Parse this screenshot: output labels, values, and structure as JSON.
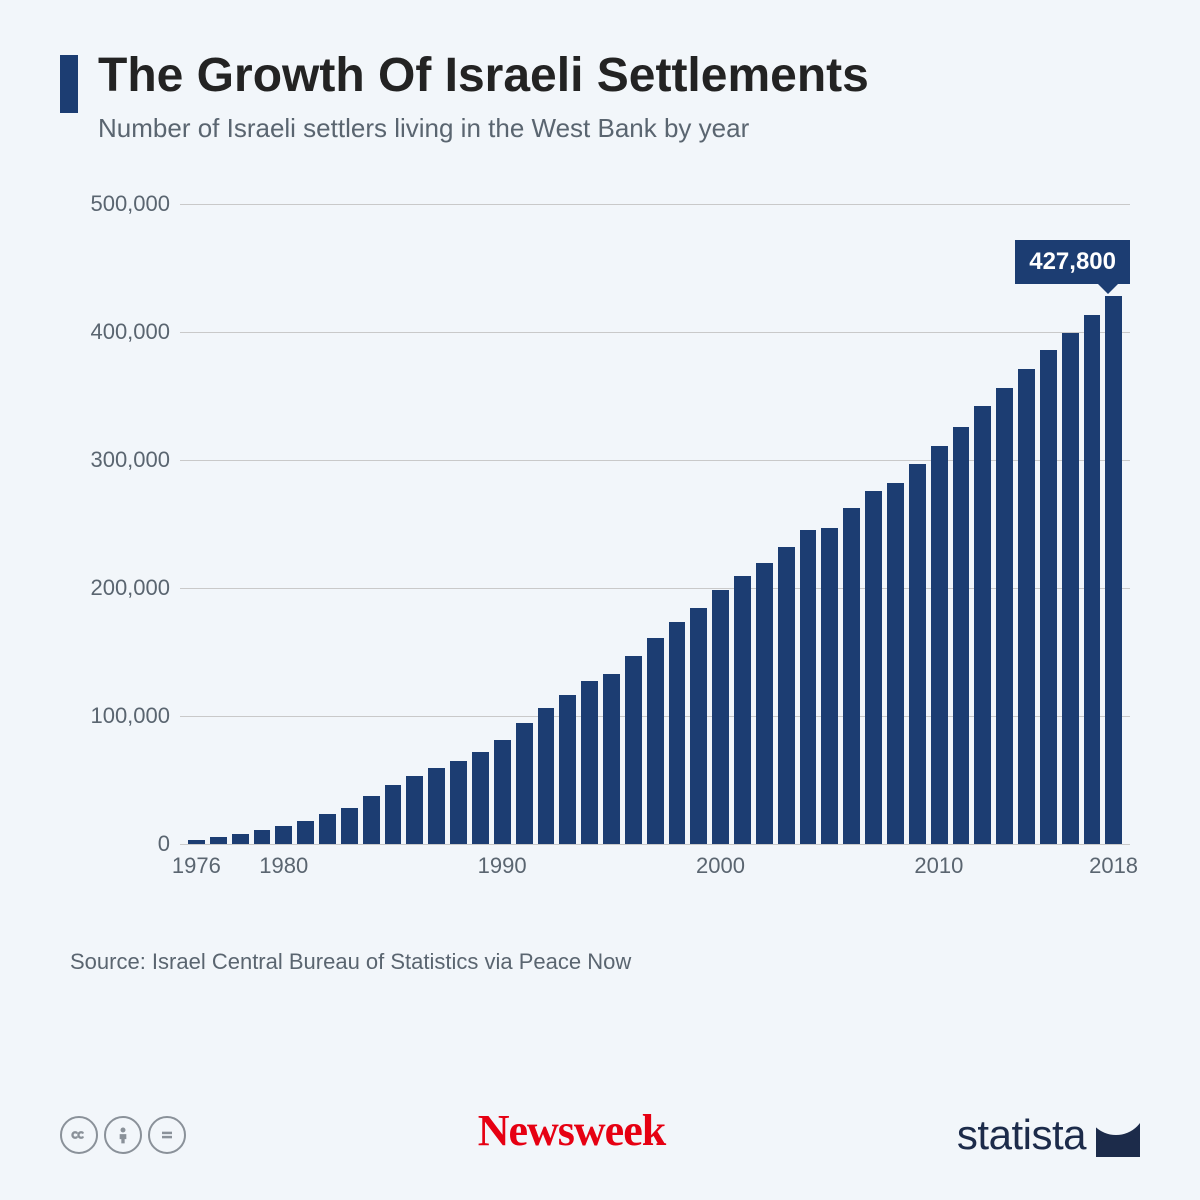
{
  "header": {
    "title": "The Growth Of Israeli Settlements",
    "subtitle": "Number of Israeli settlers living in the West Bank by year",
    "accent_color": "#1c3d72"
  },
  "chart": {
    "type": "bar",
    "bar_color": "#1c3d72",
    "background_color": "#f2f6fa",
    "grid_color": "#c9c9c9",
    "label_color": "#5a6570",
    "label_fontsize": 22,
    "ylim": [
      0,
      500000
    ],
    "ytick_step": 100000,
    "y_ticks": [
      "0",
      "100,000",
      "200,000",
      "300,000",
      "400,000",
      "500,000"
    ],
    "x_ticks": [
      {
        "year": 1976,
        "label": "1976"
      },
      {
        "year": 1980,
        "label": "1980"
      },
      {
        "year": 1990,
        "label": "1990"
      },
      {
        "year": 2000,
        "label": "2000"
      },
      {
        "year": 2010,
        "label": "2010"
      },
      {
        "year": 2018,
        "label": "2018"
      }
    ],
    "years": [
      1976,
      1977,
      1978,
      1979,
      1980,
      1981,
      1982,
      1983,
      1984,
      1985,
      1986,
      1987,
      1988,
      1989,
      1990,
      1991,
      1992,
      1993,
      1994,
      1995,
      1996,
      1997,
      1998,
      1999,
      2000,
      2001,
      2002,
      2003,
      2004,
      2005,
      2006,
      2007,
      2008,
      2009,
      2010,
      2011,
      2012,
      2013,
      2014,
      2015,
      2016,
      2017,
      2018
    ],
    "values": [
      3000,
      5000,
      8000,
      11000,
      14000,
      18000,
      23000,
      28000,
      37000,
      46000,
      53000,
      59000,
      65000,
      72000,
      81000,
      94000,
      106000,
      116000,
      127000,
      133000,
      147000,
      161000,
      173000,
      184000,
      198000,
      209000,
      219000,
      232000,
      245000,
      247000,
      262000,
      276000,
      282000,
      297000,
      311000,
      326000,
      342000,
      356000,
      371000,
      386000,
      399000,
      413000,
      427800
    ],
    "callout": {
      "year": 2018,
      "label": "427,800",
      "bg_color": "#1c3d72",
      "text_color": "#ffffff",
      "fontsize": 24
    }
  },
  "source": "Source: Israel Central Bureau of Statistics via Peace Now",
  "footer": {
    "brand1": "Newsweek",
    "brand1_color": "#e60012",
    "brand2": "statista",
    "brand2_color": "#1c2b4a",
    "cc_icons": [
      "cc",
      "by",
      "nd"
    ]
  }
}
